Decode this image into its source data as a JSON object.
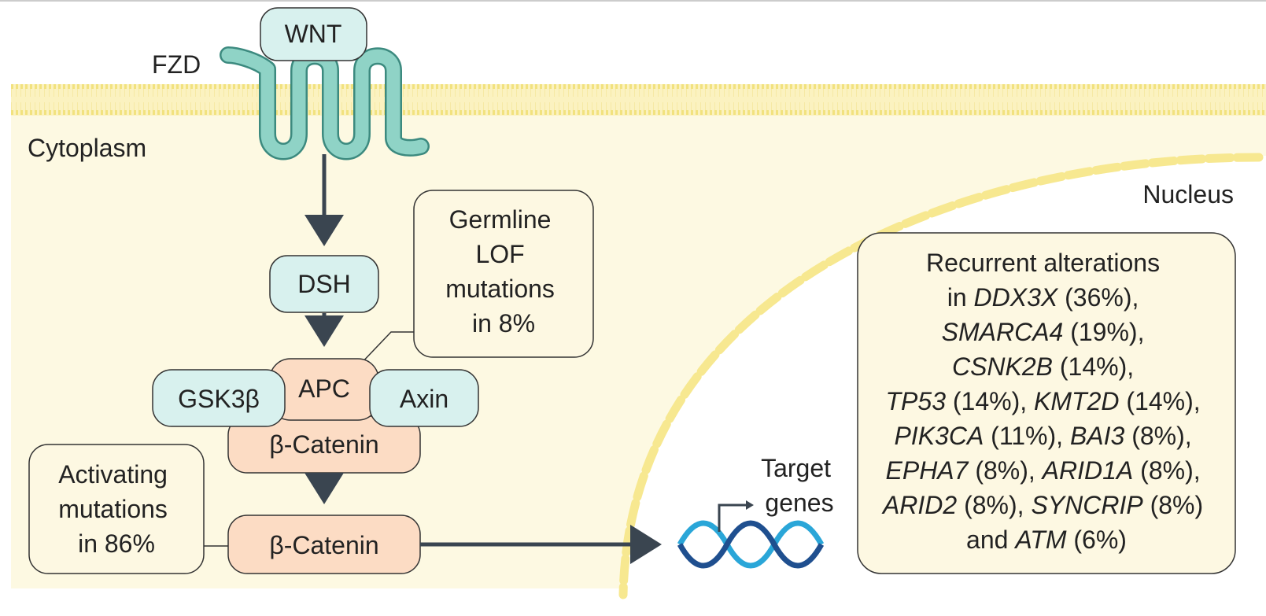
{
  "colors": {
    "cytoplasm": "#fdf9e2",
    "membrane_line": "#f2e27f",
    "nucleus_envelope": "#f7e890",
    "receptor": "#8fd3c6",
    "teal_box": "#d8f1ee",
    "peach_box": "#fcdcc4",
    "note_box": "#fdf8e2",
    "arrow": "#3a4550",
    "dna_dark": "#1f4f8f",
    "dna_light": "#2aa6d8"
  },
  "labels": {
    "wnt": "WNT",
    "fzd": "FZD",
    "cytoplasm": "Cytoplasm",
    "nucleus": "Nucleus",
    "dsh": "DSH",
    "apc": "APC",
    "gsk3b": "GSK3β",
    "axin": "Axin",
    "beta_catenin_complex": "β-Catenin",
    "beta_catenin_active": "β-Catenin",
    "target_genes": [
      "Target",
      "genes"
    ]
  },
  "notes": {
    "germline": [
      "Germline",
      "LOF",
      "mutations",
      "in 8%"
    ],
    "activating": [
      "Activating",
      "mutations",
      "in 86%"
    ]
  },
  "alterations": {
    "line1": "Recurrent alterations",
    "line2_pre": "in ",
    "line2_gene": "DDX3X",
    "line2_post": " (36%),",
    "line3_gene": "SMARCA4",
    "line3_post": " (19%),",
    "line4_gene": "CSNK2B",
    "line4_post": " (14%),",
    "line5_gene1": "TP53",
    "line5_mid": " (14%), ",
    "line5_gene2": "KMT2D",
    "line5_post": " (14%),",
    "line6_gene1": "PIK3CA",
    "line6_mid": " (11%), ",
    "line6_gene2": "BAI3",
    "line6_post": " (8%),",
    "line7_gene1": "EPHA7",
    "line7_mid": " (8%), ",
    "line7_gene2": "ARID1A",
    "line7_post": " (8%),",
    "line8_gene1": "ARID2",
    "line8_mid": " (8%), ",
    "line8_gene2": "SYNCRIP",
    "line8_post": " (8%)",
    "line9_pre": "and ",
    "line9_gene": "ATM",
    "line9_post": " (6%)"
  }
}
